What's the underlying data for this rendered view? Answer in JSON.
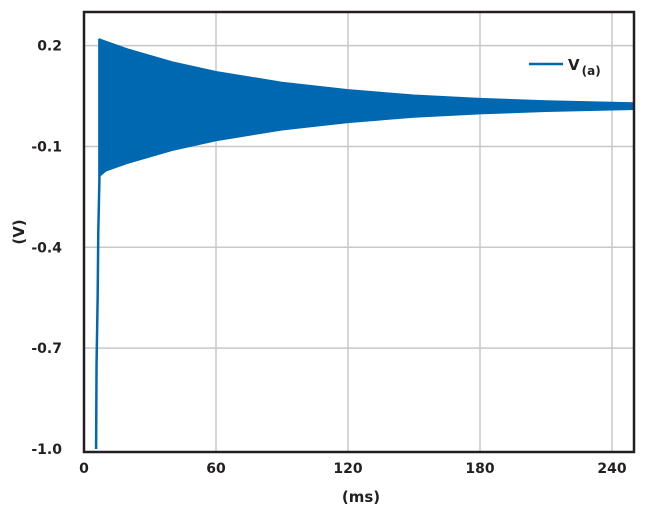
{
  "chart_data": {
    "type": "line",
    "title": "",
    "xlabel": "(ms)",
    "ylabel": "(V)",
    "xlim": [
      0,
      250
    ],
    "ylim": [
      -1.0,
      0.3
    ],
    "xticks": [
      0,
      60,
      120,
      180,
      240
    ],
    "yticks": [
      0.2,
      -0.1,
      -0.4,
      -0.7,
      -1.0
    ],
    "ytick_labels": [
      "0.2",
      "-0.1",
      "-0.4",
      "-0.7",
      "-1.0"
    ],
    "grid": true,
    "legend_position": "top-right",
    "series": [
      {
        "name": "V",
        "name_subscript": "(a)",
        "color": "#0068b0",
        "rise": {
          "x": [
            5.5,
            5.7,
            6.2,
            6.5,
            7.0,
            7.0
          ],
          "y": [
            -1.0,
            -0.75,
            -0.55,
            -0.35,
            -0.2,
            0.22
          ]
        },
        "oscillation_envelope": {
          "x": [
            7,
            10,
            20,
            40,
            60,
            90,
            120,
            150,
            180,
            210,
            250
          ],
          "upper": [
            0.22,
            0.213,
            0.19,
            0.152,
            0.123,
            0.091,
            0.069,
            0.053,
            0.043,
            0.036,
            0.03
          ],
          "lower": [
            -0.19,
            -0.173,
            -0.15,
            -0.112,
            -0.083,
            -0.051,
            -0.029,
            -0.013,
            -0.003,
            0.004,
            0.01
          ]
        }
      }
    ]
  }
}
